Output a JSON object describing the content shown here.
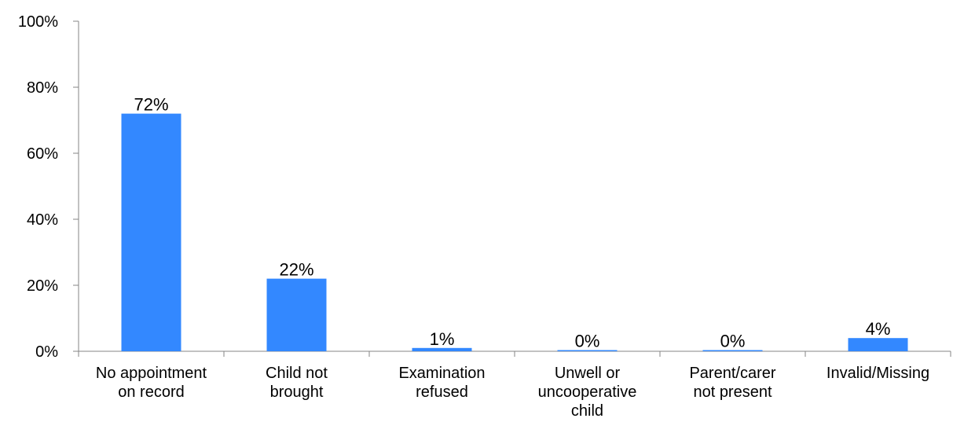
{
  "chart_data": {
    "type": "bar",
    "categories": [
      [
        "No appointment",
        "on record"
      ],
      [
        "Child not",
        "brought"
      ],
      [
        "Examination",
        "refused"
      ],
      [
        "Unwell or",
        "uncooperative",
        "child"
      ],
      [
        "Parent/carer",
        "not present"
      ],
      [
        "Invalid/Missing"
      ]
    ],
    "values": [
      72,
      22,
      1,
      0,
      0,
      4
    ],
    "data_labels": [
      "72%",
      "22%",
      "1%",
      "0%",
      "0%",
      "4%"
    ],
    "y_ticks": [
      0,
      20,
      40,
      60,
      80,
      100
    ],
    "y_tick_labels": [
      "0%",
      "20%",
      "40%",
      "60%",
      "80%",
      "100%"
    ],
    "ylim": [
      0,
      100
    ],
    "bar_color": "#3388ff",
    "axis_color": "#868686",
    "grid": false,
    "legend": "none"
  }
}
